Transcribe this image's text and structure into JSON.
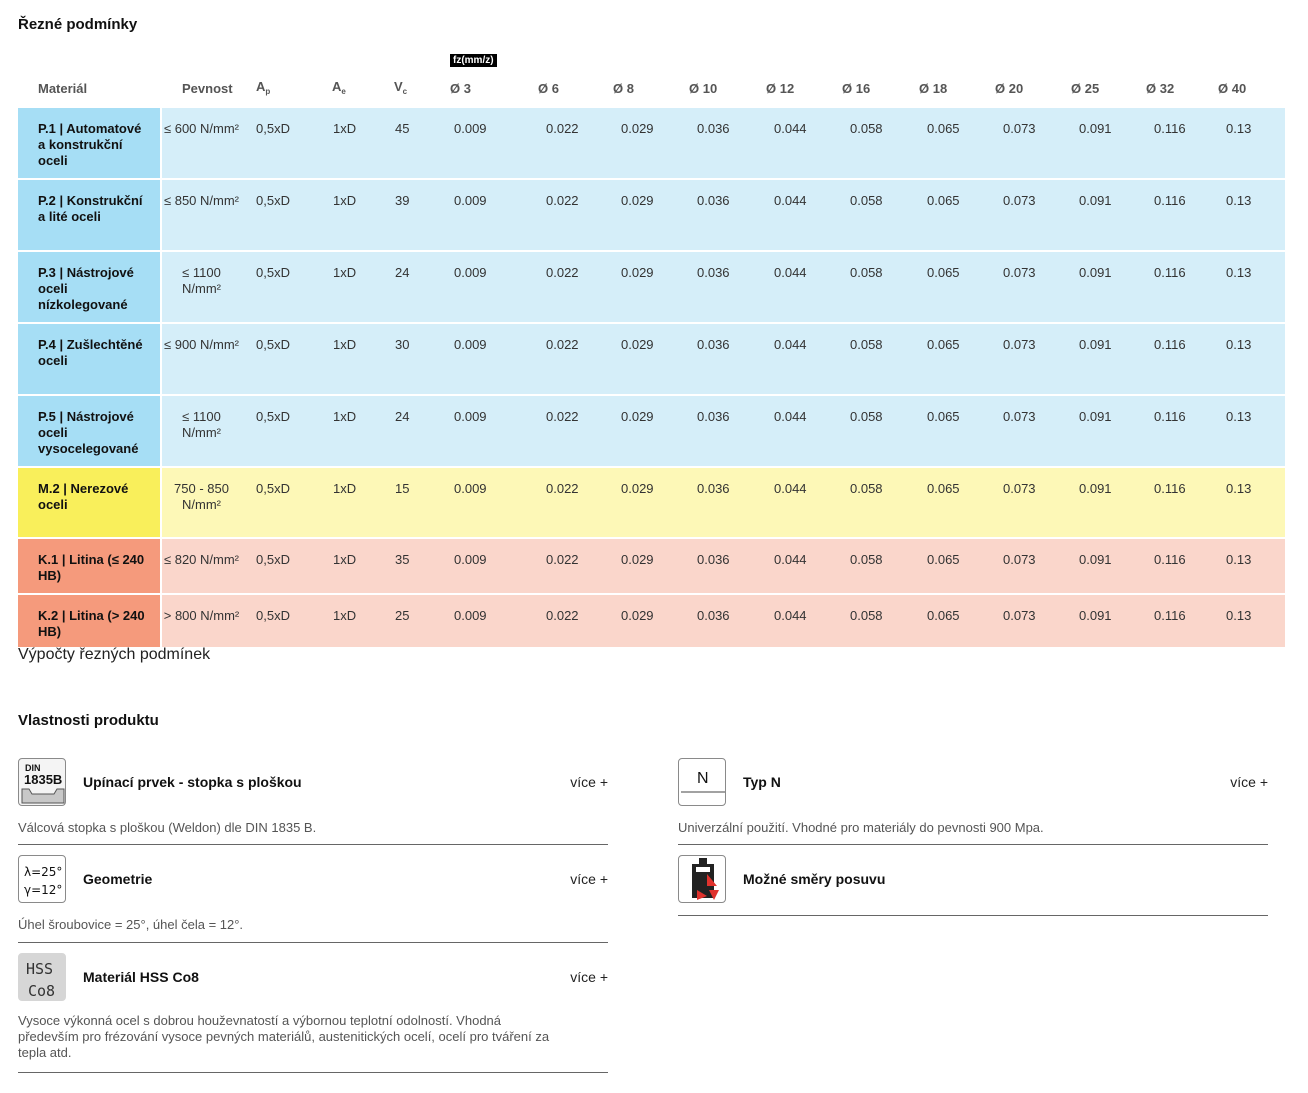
{
  "cutting": {
    "title": "Řezné podmínky",
    "fz_label": "fz(mm/z)",
    "headers": {
      "material": "Materiál",
      "strength": "Pevnost",
      "ap": "A",
      "ap_sub": "p",
      "ae": "A",
      "ae_sub": "e",
      "vc": "V",
      "vc_sub": "c",
      "diameters": [
        "Ø 3",
        "Ø 6",
        "Ø 8",
        "Ø 10",
        "Ø 12",
        "Ø 16",
        "Ø 18",
        "Ø 20",
        "Ø 25",
        "Ø 32",
        "Ø 40"
      ]
    },
    "colors": {
      "P": {
        "mat": "#a6def5",
        "row": "#d5eef9"
      },
      "M": {
        "mat": "#f9ef5b",
        "row": "#fdf8b7"
      },
      "K": {
        "mat": "#f59a7c",
        "row": "#fad6cb"
      }
    },
    "rows": [
      {
        "group": "P",
        "material": "P.1 | Automatové a konstrukční oceli",
        "strength": "≤ 600 N/mm²",
        "ap": "0,5xD",
        "ae": "1xD",
        "vc": "45",
        "fz": [
          "0.009",
          "0.022",
          "0.029",
          "0.036",
          "0.044",
          "0.058",
          "0.065",
          "0.073",
          "0.091",
          "0.116",
          "0.13"
        ]
      },
      {
        "group": "P",
        "material": "P.2 | Konstrukční a lité oceli",
        "strength": "≤ 850 N/mm²",
        "ap": "0,5xD",
        "ae": "1xD",
        "vc": "39",
        "fz": [
          "0.009",
          "0.022",
          "0.029",
          "0.036",
          "0.044",
          "0.058",
          "0.065",
          "0.073",
          "0.091",
          "0.116",
          "0.13"
        ]
      },
      {
        "group": "P",
        "material": "P.3 | Nástrojové oceli nízkolegované",
        "strength": "≤ 1100 N/mm²",
        "ap": "0,5xD",
        "ae": "1xD",
        "vc": "24",
        "fz": [
          "0.009",
          "0.022",
          "0.029",
          "0.036",
          "0.044",
          "0.058",
          "0.065",
          "0.073",
          "0.091",
          "0.116",
          "0.13"
        ]
      },
      {
        "group": "P",
        "material": "P.4 | Zušlechtěné oceli",
        "strength": "≤ 900 N/mm²",
        "ap": "0,5xD",
        "ae": "1xD",
        "vc": "30",
        "fz": [
          "0.009",
          "0.022",
          "0.029",
          "0.036",
          "0.044",
          "0.058",
          "0.065",
          "0.073",
          "0.091",
          "0.116",
          "0.13"
        ]
      },
      {
        "group": "P",
        "material": "P.5 | Nástrojové oceli vysocelegované",
        "strength": "≤ 1100 N/mm²",
        "ap": "0,5xD",
        "ae": "1xD",
        "vc": "24",
        "fz": [
          "0.009",
          "0.022",
          "0.029",
          "0.036",
          "0.044",
          "0.058",
          "0.065",
          "0.073",
          "0.091",
          "0.116",
          "0.13"
        ]
      },
      {
        "group": "M",
        "material": "M.2 | Nerezové oceli",
        "strength": "750 - 850 N/mm²",
        "ap": "0,5xD",
        "ae": "1xD",
        "vc": "15",
        "fz": [
          "0.009",
          "0.022",
          "0.029",
          "0.036",
          "0.044",
          "0.058",
          "0.065",
          "0.073",
          "0.091",
          "0.116",
          "0.13"
        ]
      },
      {
        "group": "K",
        "material": "K.1 | Litina (≤ 240 HB)",
        "strength": "≤ 820 N/mm²",
        "ap": "0,5xD",
        "ae": "1xD",
        "vc": "35",
        "fz": [
          "0.009",
          "0.022",
          "0.029",
          "0.036",
          "0.044",
          "0.058",
          "0.065",
          "0.073",
          "0.091",
          "0.116",
          "0.13"
        ]
      },
      {
        "group": "K",
        "material": "K.2 | Litina (> 240 HB)",
        "strength": "> 800 N/mm²",
        "ap": "0,5xD",
        "ae": "1xD",
        "vc": "25",
        "fz": [
          "0.009",
          "0.022",
          "0.029",
          "0.036",
          "0.044",
          "0.058",
          "0.065",
          "0.073",
          "0.091",
          "0.116",
          "0.13"
        ]
      }
    ],
    "calc_link": "Výpočty řezných podmínek"
  },
  "properties": {
    "title": "Vlastnosti produktu",
    "more_label": "více +",
    "items": [
      {
        "icon": "din-1835b-icon",
        "icon_text": [
          "DIN",
          "1835B"
        ],
        "title": "Upínací prvek - stopka s ploškou",
        "has_more": true,
        "desc": "Válcová stopka s ploškou (Weldon) dle DIN 1835 B."
      },
      {
        "icon": "type-n-icon",
        "icon_text": [
          "N"
        ],
        "title": "Typ N",
        "has_more": true,
        "desc": "Univerzální použití. Vhodné pro materiály do pevnosti 900 Mpa."
      },
      {
        "icon": "geometry-icon",
        "icon_text": [
          "λ=25°",
          "γ=12°"
        ],
        "title": "Geometrie",
        "has_more": true,
        "desc": "Úhel šroubovice = 25°, úhel čela = 12°."
      },
      {
        "icon": "feed-directions-icon",
        "icon_text": [],
        "title": "Možné směry posuvu",
        "has_more": false,
        "desc": ""
      },
      {
        "icon": "hss-co8-icon",
        "icon_text": [
          "HSS",
          "Co8"
        ],
        "title": "Materiál HSS Co8",
        "has_more": true,
        "desc": "Vysoce výkonná ocel s dobrou houževnatostí a výbornou teplotní odolností. Vhodná především pro frézování vysoce pevných materiálů, austenitických ocelí, ocelí pro tváření za tepla atd."
      }
    ]
  }
}
